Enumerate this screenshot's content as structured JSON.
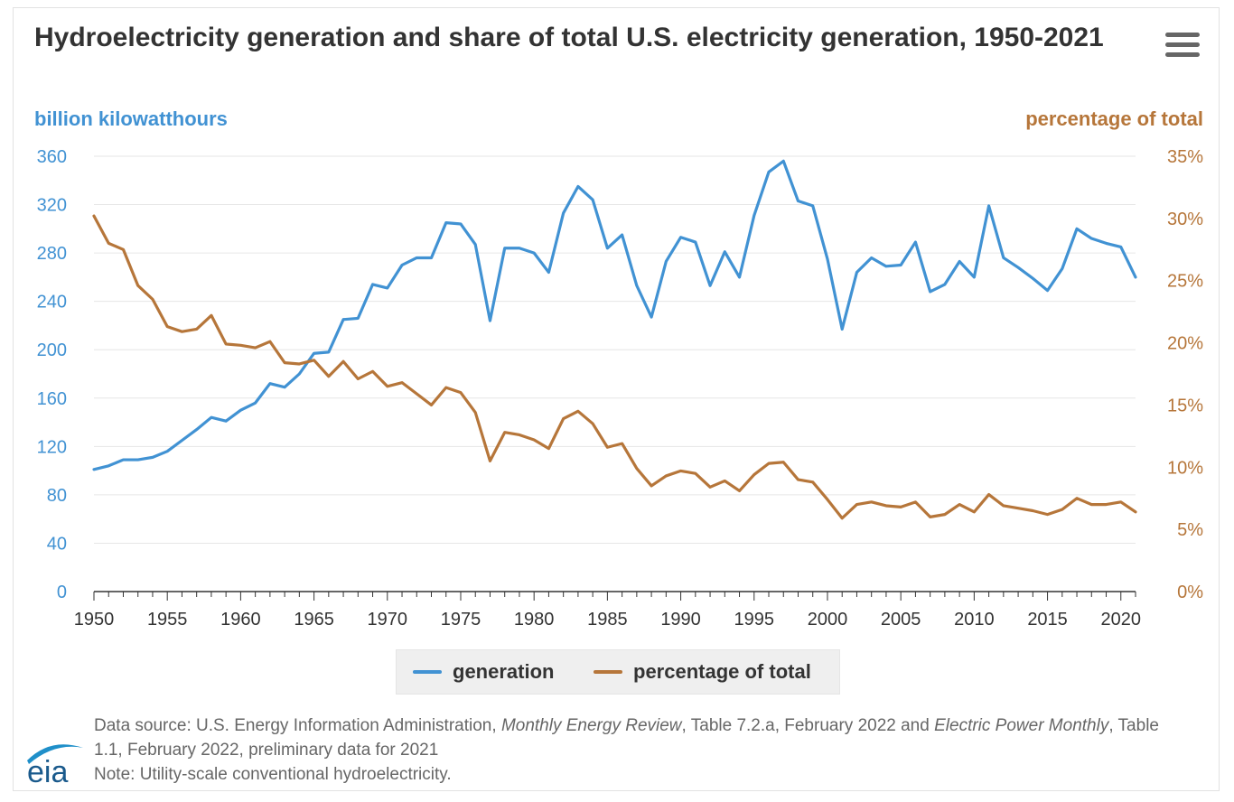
{
  "title": "Hydroelectricity generation and share of total U.S. electricity generation, 1950-2021",
  "menu_icon": "hamburger-menu-icon",
  "colors": {
    "generation": "#4192d3",
    "percentage": "#b6763a",
    "grid": "#e6e6e6",
    "axis": "#333333",
    "text": "#333333",
    "note": "#666666"
  },
  "source": {
    "prefix": "Data source: U.S. Energy Information Administration, ",
    "mer": "Monthly Energy Review",
    "mid": ", Table 7.2.a, February 2022 and ",
    "epm": "Electric Power Monthly",
    "suffix": ", Table 1.1, February 2022, preliminary data for 2021",
    "note": "Note: Utility-scale conventional hydroelectricity."
  },
  "logo_text": "eia",
  "chart_data": {
    "type": "line",
    "title": "Hydroelectricity generation and share of total U.S. electricity generation, 1950-2021",
    "y_left_label": "billion kilowatthours",
    "y_right_label": "percentage of total",
    "y_left_lim": [
      0,
      360
    ],
    "y_left_ticks": [
      "0",
      "40",
      "80",
      "120",
      "160",
      "200",
      "240",
      "280",
      "320",
      "360"
    ],
    "y_right_lim": [
      0,
      35
    ],
    "y_right_ticks": [
      "0%",
      "5%",
      "10%",
      "15%",
      "20%",
      "25%",
      "30%",
      "35%"
    ],
    "x_lim": [
      1950,
      2021
    ],
    "x_ticks": [
      "1950",
      "1955",
      "1960",
      "1965",
      "1970",
      "1975",
      "1980",
      "1985",
      "1990",
      "1995",
      "2000",
      "2005",
      "2010",
      "2015",
      "2020"
    ],
    "grid": true,
    "legend_position": "bottom-center",
    "x": [
      1950,
      1951,
      1952,
      1953,
      1954,
      1955,
      1956,
      1957,
      1958,
      1959,
      1960,
      1961,
      1962,
      1963,
      1964,
      1965,
      1966,
      1967,
      1968,
      1969,
      1970,
      1971,
      1972,
      1973,
      1974,
      1975,
      1976,
      1977,
      1978,
      1979,
      1980,
      1981,
      1982,
      1983,
      1984,
      1985,
      1986,
      1987,
      1988,
      1989,
      1990,
      1991,
      1992,
      1993,
      1994,
      1995,
      1996,
      1997,
      1998,
      1999,
      2000,
      2001,
      2002,
      2003,
      2004,
      2005,
      2006,
      2007,
      2008,
      2009,
      2010,
      2011,
      2012,
      2013,
      2014,
      2015,
      2016,
      2017,
      2018,
      2019,
      2020,
      2021
    ],
    "series": [
      {
        "name": "generation",
        "axis": "left",
        "values": [
          101,
          104,
          109,
          109,
          111,
          116,
          125,
          134,
          144,
          141,
          150,
          156,
          172,
          169,
          180,
          197,
          198,
          225,
          226,
          254,
          251,
          270,
          276,
          276,
          305,
          304,
          287,
          224,
          284,
          284,
          280,
          264,
          313,
          335,
          324,
          284,
          295,
          253,
          227,
          273,
          293,
          289,
          253,
          281,
          260,
          311,
          347,
          356,
          323,
          319,
          275,
          217,
          264,
          276,
          269,
          270,
          289,
          248,
          254,
          273,
          260,
          319,
          276,
          268,
          259,
          249,
          267,
          300,
          292,
          288,
          285,
          260
        ]
      },
      {
        "name": "percentage of total",
        "axis": "right",
        "values": [
          30.2,
          28.0,
          27.5,
          24.6,
          23.5,
          21.3,
          20.9,
          21.1,
          22.2,
          19.9,
          19.8,
          19.6,
          20.1,
          18.4,
          18.3,
          18.6,
          17.3,
          18.5,
          17.1,
          17.7,
          16.5,
          16.8,
          15.9,
          15.0,
          16.4,
          16.0,
          14.4,
          10.5,
          12.8,
          12.6,
          12.2,
          11.5,
          13.9,
          14.5,
          13.5,
          11.6,
          11.9,
          9.9,
          8.5,
          9.3,
          9.7,
          9.5,
          8.4,
          8.9,
          8.1,
          9.4,
          10.3,
          10.4,
          9.0,
          8.8,
          7.4,
          5.9,
          7.0,
          7.2,
          6.9,
          6.8,
          7.2,
          6.0,
          6.2,
          7.0,
          6.4,
          7.8,
          6.9,
          6.7,
          6.5,
          6.2,
          6.6,
          7.5,
          7.0,
          7.0,
          7.2,
          6.4
        ]
      }
    ]
  }
}
